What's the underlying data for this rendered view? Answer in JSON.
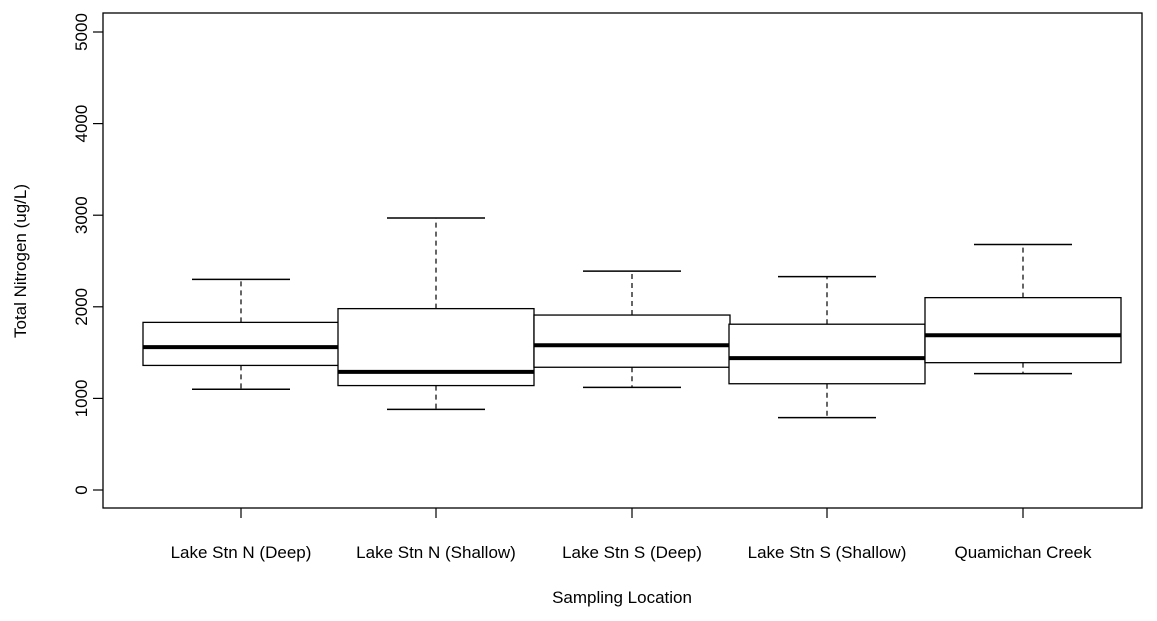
{
  "chart_data": {
    "type": "box",
    "title": "",
    "xlabel": "Sampling Location",
    "ylabel": "Total Nitrogen (ug/L)",
    "ylim": [
      0,
      5000
    ],
    "yticks": [
      0,
      1000,
      2000,
      3000,
      4000,
      5000
    ],
    "grid": false,
    "categories": [
      "Lake Stn N (Deep)",
      "Lake Stn N (Shallow)",
      "Lake Stn S (Deep)",
      "Lake Stn S (Shallow)",
      "Quamichan Creek"
    ],
    "boxes": [
      {
        "whisker_low": 1100,
        "q1": 1360,
        "median": 1560,
        "q3": 1830,
        "whisker_high": 2300
      },
      {
        "whisker_low": 880,
        "q1": 1140,
        "median": 1290,
        "q3": 1980,
        "whisker_high": 2970
      },
      {
        "whisker_low": 1120,
        "q1": 1340,
        "median": 1580,
        "q3": 1910,
        "whisker_high": 2390
      },
      {
        "whisker_low": 790,
        "q1": 1160,
        "median": 1440,
        "q3": 1810,
        "whisker_high": 2330
      },
      {
        "whisker_low": 1270,
        "q1": 1390,
        "median": 1690,
        "q3": 2100,
        "whisker_high": 2680
      }
    ],
    "colors": {
      "box_fill": "#ffffff",
      "stroke": "#000000"
    }
  }
}
